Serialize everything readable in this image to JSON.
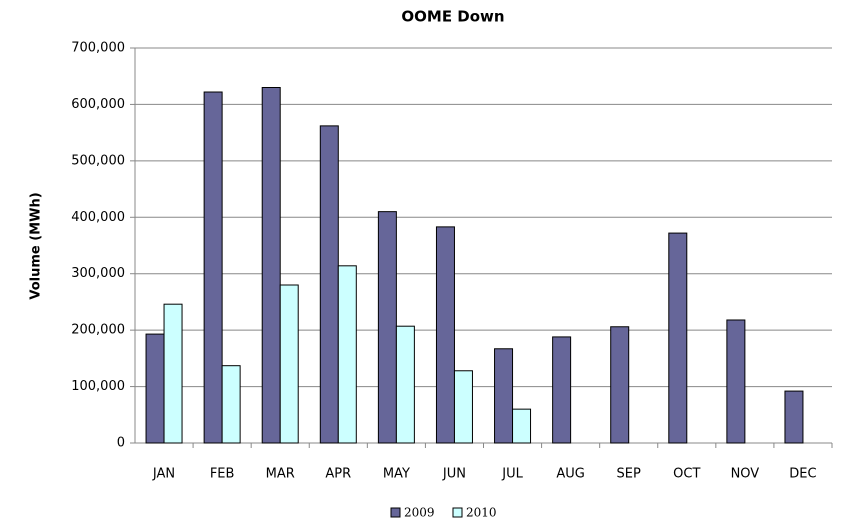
{
  "chart_data": {
    "type": "bar",
    "title": "OOME Down",
    "y_label": "Volume (MWh)",
    "categories": [
      "JAN",
      "FEB",
      "MAR",
      "APR",
      "MAY",
      "JUN",
      "JUL",
      "AUG",
      "SEP",
      "OCT",
      "NOV",
      "DEC"
    ],
    "series": [
      {
        "name": "2009",
        "color": "#666699",
        "values": [
          193000,
          622000,
          630000,
          562000,
          410000,
          383000,
          167000,
          188000,
          206000,
          372000,
          218000,
          92000
        ]
      },
      {
        "name": "2010",
        "color": "#ccffff",
        "values": [
          246000,
          137000,
          280000,
          314000,
          207000,
          128000,
          60000,
          null,
          null,
          null,
          null,
          null
        ]
      }
    ],
    "ylim": [
      0,
      700000
    ],
    "yticks": [
      0,
      {
        "value": 100000,
        "label": "100,000"
      },
      {
        "value": 200000,
        "label": "200,000"
      },
      {
        "value": 300000,
        "label": "300,000"
      },
      {
        "value": 400000,
        "label": "400,000"
      },
      {
        "value": 500000,
        "label": "500,000"
      },
      {
        "value": 600000,
        "label": "600,000"
      },
      {
        "value": 700000,
        "label": "700,000"
      }
    ],
    "grid": true,
    "legend": "bottom"
  }
}
